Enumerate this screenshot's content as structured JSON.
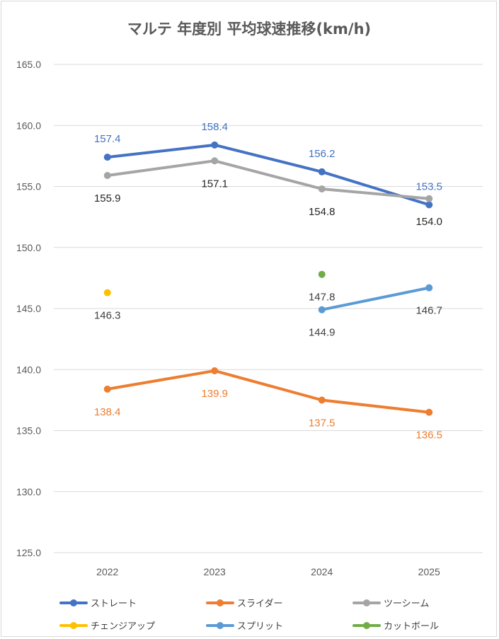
{
  "chart_data": {
    "type": "line",
    "title": "マルテ 年度別 平均球速推移(km/h)",
    "categories": [
      "2022",
      "2023",
      "2024",
      "2025"
    ],
    "ylim": [
      125,
      165
    ],
    "yticks": [
      "125.0",
      "130.0",
      "135.0",
      "140.0",
      "145.0",
      "150.0",
      "155.0",
      "160.0",
      "165.0"
    ],
    "grid": true,
    "legend_position": "bottom",
    "series": [
      {
        "name": "ストレート",
        "color": "#4472C4",
        "values": [
          157.4,
          158.4,
          156.2,
          153.5
        ],
        "labels": [
          "157.4",
          "158.4",
          "156.2",
          "153.5"
        ],
        "label_color": "#4472C4",
        "label_pos": [
          "above",
          "above",
          "above",
          "above"
        ]
      },
      {
        "name": "スライダー",
        "color": "#ED7D31",
        "values": [
          138.4,
          139.9,
          137.5,
          136.5
        ],
        "labels": [
          "138.4",
          "139.9",
          "137.5",
          "136.5"
        ],
        "label_color": "#ED7D31",
        "label_pos": [
          "below",
          "below",
          "below",
          "below"
        ]
      },
      {
        "name": "ツーシーム",
        "color": "#A5A5A5",
        "values": [
          155.9,
          157.1,
          154.8,
          154.0
        ],
        "labels": [
          "155.9",
          "157.1",
          "154.8",
          "154.0"
        ],
        "label_color": "#262626",
        "label_pos": [
          "below",
          "below",
          "below",
          "below"
        ]
      },
      {
        "name": "チェンジアップ",
        "color": "#FFC000",
        "values": [
          146.3,
          null,
          null,
          null
        ],
        "labels": [
          "146.3",
          null,
          null,
          null
        ],
        "label_color": "#404040",
        "label_pos": [
          "below",
          null,
          null,
          null
        ]
      },
      {
        "name": "スプリット",
        "color": "#5B9BD5",
        "values": [
          null,
          null,
          144.9,
          146.7
        ],
        "labels": [
          null,
          null,
          "144.9",
          "146.7"
        ],
        "label_color": "#404040",
        "label_pos": [
          null,
          null,
          "below",
          "below"
        ]
      },
      {
        "name": "カットボール",
        "color": "#70AD47",
        "values": [
          null,
          null,
          147.8,
          null
        ],
        "labels": [
          null,
          null,
          "147.8",
          null
        ],
        "label_color": "#404040",
        "label_pos": [
          null,
          null,
          "below",
          null
        ]
      }
    ]
  }
}
